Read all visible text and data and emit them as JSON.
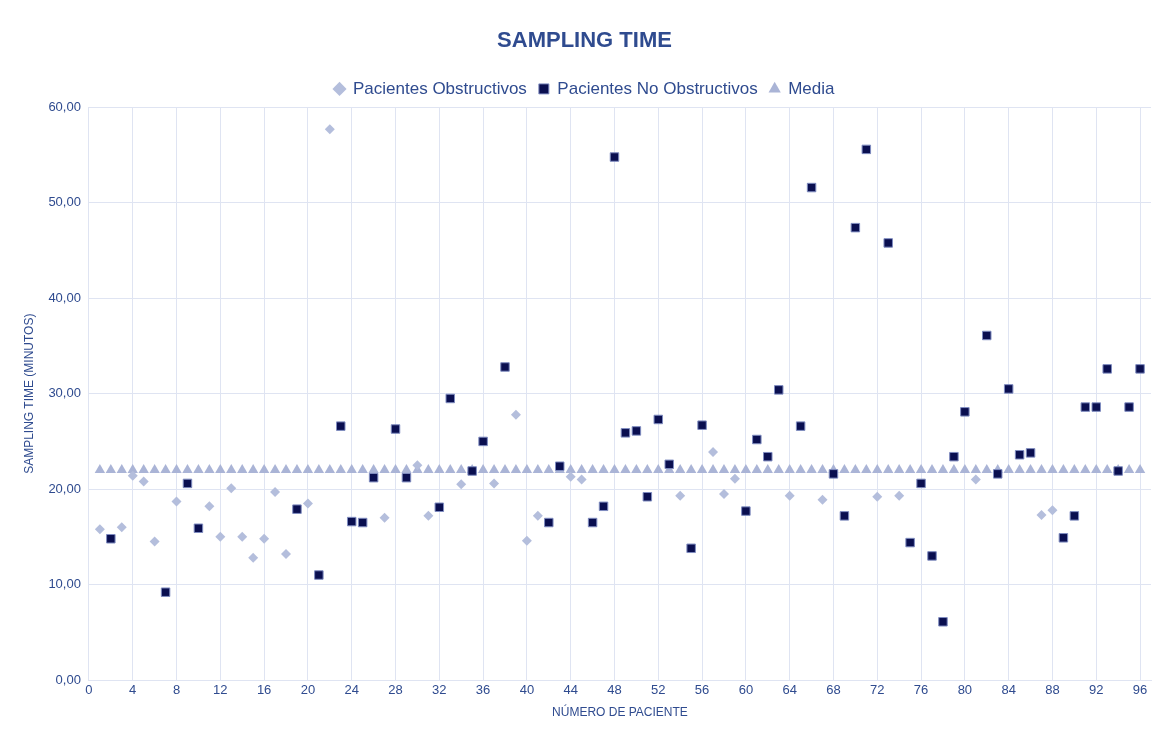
{
  "chart_data": {
    "type": "scatter",
    "title": "SAMPLING TIME",
    "xlabel": "NÚMERO DE PACIENTE",
    "ylabel": "SAMPLING TIME (MINUTOS)",
    "xlim": [
      0,
      97
    ],
    "xticks": [
      0,
      4,
      8,
      12,
      16,
      20,
      24,
      28,
      32,
      36,
      40,
      44,
      48,
      52,
      56,
      60,
      64,
      68,
      72,
      76,
      80,
      84,
      88,
      92,
      96
    ],
    "ylim": [
      0,
      60
    ],
    "yticks": [
      {
        "value": 0,
        "label": "0,00"
      },
      {
        "value": 10,
        "label": "10,00"
      },
      {
        "value": 20,
        "label": "20,00"
      },
      {
        "value": 30,
        "label": "30,00"
      },
      {
        "value": 40,
        "label": "40,00"
      },
      {
        "value": 50,
        "label": "50,00"
      },
      {
        "value": 60,
        "label": "60,00"
      }
    ],
    "grid": true,
    "legend": "top",
    "series": [
      {
        "name": "Pacientes Obstructivos",
        "color": "#b4bedc",
        "marker": "diamond",
        "x": [
          1,
          3,
          4,
          5,
          6,
          8,
          11,
          12,
          13,
          14,
          15,
          16,
          17,
          18,
          20,
          22,
          27,
          30,
          31,
          34,
          37,
          39,
          40,
          41,
          44,
          45,
          54,
          57,
          58,
          59,
          64,
          67,
          72,
          74,
          81,
          87,
          88
        ],
        "values": [
          15.8,
          16.0,
          21.4,
          20.8,
          14.5,
          18.7,
          18.2,
          15.0,
          20.1,
          15.0,
          12.8,
          14.8,
          19.7,
          13.2,
          18.5,
          57.7,
          17.0,
          22.5,
          17.2,
          20.5,
          20.6,
          27.8,
          14.6,
          17.2,
          21.3,
          21.0,
          19.3,
          23.9,
          19.5,
          21.1,
          19.3,
          18.9,
          19.2,
          19.3,
          21.0,
          17.3,
          17.8
        ]
      },
      {
        "name": "Pacientes No Obstructivos",
        "color": "#0a0f50",
        "marker": "square",
        "x": [
          2,
          7,
          9,
          10,
          19,
          21,
          23,
          24,
          25,
          26,
          28,
          29,
          32,
          33,
          35,
          36,
          38,
          42,
          43,
          46,
          47,
          48,
          49,
          50,
          51,
          52,
          53,
          55,
          56,
          60,
          61,
          62,
          63,
          65,
          66,
          68,
          69,
          70,
          71,
          73,
          75,
          76,
          77,
          78,
          79,
          80,
          82,
          83,
          84,
          85,
          86,
          89,
          90,
          91,
          92,
          93,
          94,
          95,
          96
        ],
        "values": [
          14.8,
          9.2,
          20.6,
          15.9,
          17.9,
          11.0,
          26.6,
          16.6,
          16.5,
          21.2,
          26.3,
          21.2,
          18.1,
          29.5,
          21.9,
          25.0,
          32.8,
          16.5,
          22.4,
          16.5,
          18.2,
          54.8,
          25.9,
          26.1,
          19.2,
          27.3,
          22.6,
          13.8,
          26.7,
          17.7,
          25.2,
          23.4,
          30.4,
          26.6,
          51.6,
          21.6,
          17.2,
          47.4,
          55.6,
          45.8,
          14.4,
          20.6,
          13.0,
          6.1,
          23.4,
          28.1,
          36.1,
          21.6,
          30.5,
          23.6,
          23.8,
          14.9,
          17.2,
          28.6,
          28.6,
          32.6,
          21.9,
          28.6,
          32.6
        ]
      },
      {
        "name": "Media",
        "color": "#aab4d6",
        "marker": "triangle",
        "x": [
          1,
          2,
          3,
          4,
          5,
          6,
          7,
          8,
          9,
          10,
          11,
          12,
          13,
          14,
          15,
          16,
          17,
          18,
          19,
          20,
          21,
          22,
          23,
          24,
          25,
          26,
          27,
          28,
          29,
          30,
          31,
          32,
          33,
          34,
          35,
          36,
          37,
          38,
          39,
          40,
          41,
          42,
          43,
          44,
          45,
          46,
          47,
          48,
          49,
          50,
          51,
          52,
          53,
          54,
          55,
          56,
          57,
          58,
          59,
          60,
          61,
          62,
          63,
          64,
          65,
          66,
          67,
          68,
          69,
          70,
          71,
          72,
          73,
          74,
          75,
          76,
          77,
          78,
          79,
          80,
          81,
          82,
          83,
          84,
          85,
          86,
          87,
          88,
          89,
          90,
          91,
          92,
          93,
          94,
          95,
          96
        ],
        "values": [
          22,
          22,
          22,
          22,
          22,
          22,
          22,
          22,
          22,
          22,
          22,
          22,
          22,
          22,
          22,
          22,
          22,
          22,
          22,
          22,
          22,
          22,
          22,
          22,
          22,
          22,
          22,
          22,
          22,
          22,
          22,
          22,
          22,
          22,
          22,
          22,
          22,
          22,
          22,
          22,
          22,
          22,
          22,
          22,
          22,
          22,
          22,
          22,
          22,
          22,
          22,
          22,
          22,
          22,
          22,
          22,
          22,
          22,
          22,
          22,
          22,
          22,
          22,
          22,
          22,
          22,
          22,
          22,
          22,
          22,
          22,
          22,
          22,
          22,
          22,
          22,
          22,
          22,
          22,
          22,
          22,
          22,
          22,
          22,
          22,
          22,
          22,
          22,
          22,
          22,
          22,
          22,
          22,
          22,
          22,
          22
        ]
      }
    ]
  }
}
